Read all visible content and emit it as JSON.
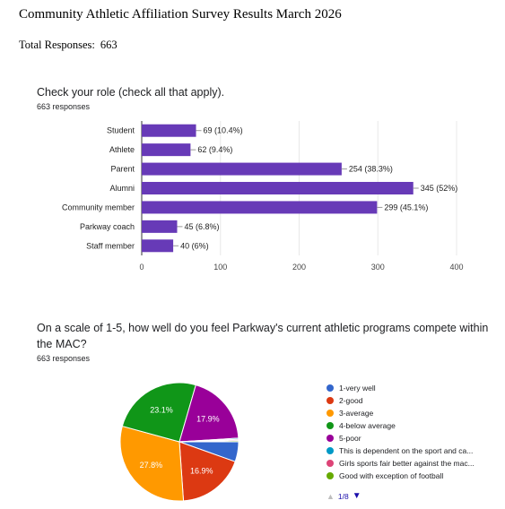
{
  "header": {
    "title": "Community Athletic Affiliation Survey Results March 2026",
    "total_label": "Total Responses:",
    "total_value": "663"
  },
  "q1": {
    "title": "Check your role (check all that apply).",
    "responses": "663 responses"
  },
  "q2": {
    "title": "On a scale of 1-5, how well do you feel Parkway's current athletic programs compete within the MAC?",
    "responses": "663 responses"
  },
  "legend_pager": {
    "prev_icon": "▲",
    "page": "1/8",
    "next_icon": "▼"
  },
  "chart_data": [
    {
      "type": "bar",
      "orientation": "horizontal",
      "categories": [
        "Student",
        "Athlete",
        "Parent",
        "Alumni",
        "Community member",
        "Parkway coach",
        "Staff member"
      ],
      "values": [
        69,
        62,
        254,
        345,
        299,
        45,
        40
      ],
      "data_labels": [
        "69 (10.4%)",
        "62 (9.4%)",
        "254 (38.3%)",
        "345 (52%)",
        "299 (45.1%)",
        "45 (6.8%)",
        "40 (6%)"
      ],
      "xlim": [
        0,
        400
      ],
      "xticks": [
        "0",
        "100",
        "200",
        "300",
        "400"
      ],
      "grid": true,
      "color": "#673ab7"
    },
    {
      "type": "pie",
      "legend_position": "right",
      "slices": [
        {
          "label": "1-very well",
          "value": 5.0,
          "display": "",
          "color": "#3366cc"
        },
        {
          "label": "2-good",
          "value": 16.9,
          "display": "16.9%",
          "color": "#dc3912"
        },
        {
          "label": "3-average",
          "value": 27.8,
          "display": "27.8%",
          "color": "#ff9900"
        },
        {
          "label": "4-below average",
          "value": 23.1,
          "display": "23.1%",
          "color": "#109618"
        },
        {
          "label": "5-poor",
          "value": 17.9,
          "display": "17.9%",
          "color": "#990099"
        },
        {
          "label": "This is dependent on the sport and ca...",
          "value": 0.3,
          "display": "",
          "color": "#0099c6"
        },
        {
          "label": "Girls sports fair better against the mac...",
          "value": 0.3,
          "display": "",
          "color": "#dd4477"
        },
        {
          "label": "Good with exception of football",
          "value": 0.3,
          "display": "",
          "color": "#66aa00"
        }
      ]
    }
  ]
}
